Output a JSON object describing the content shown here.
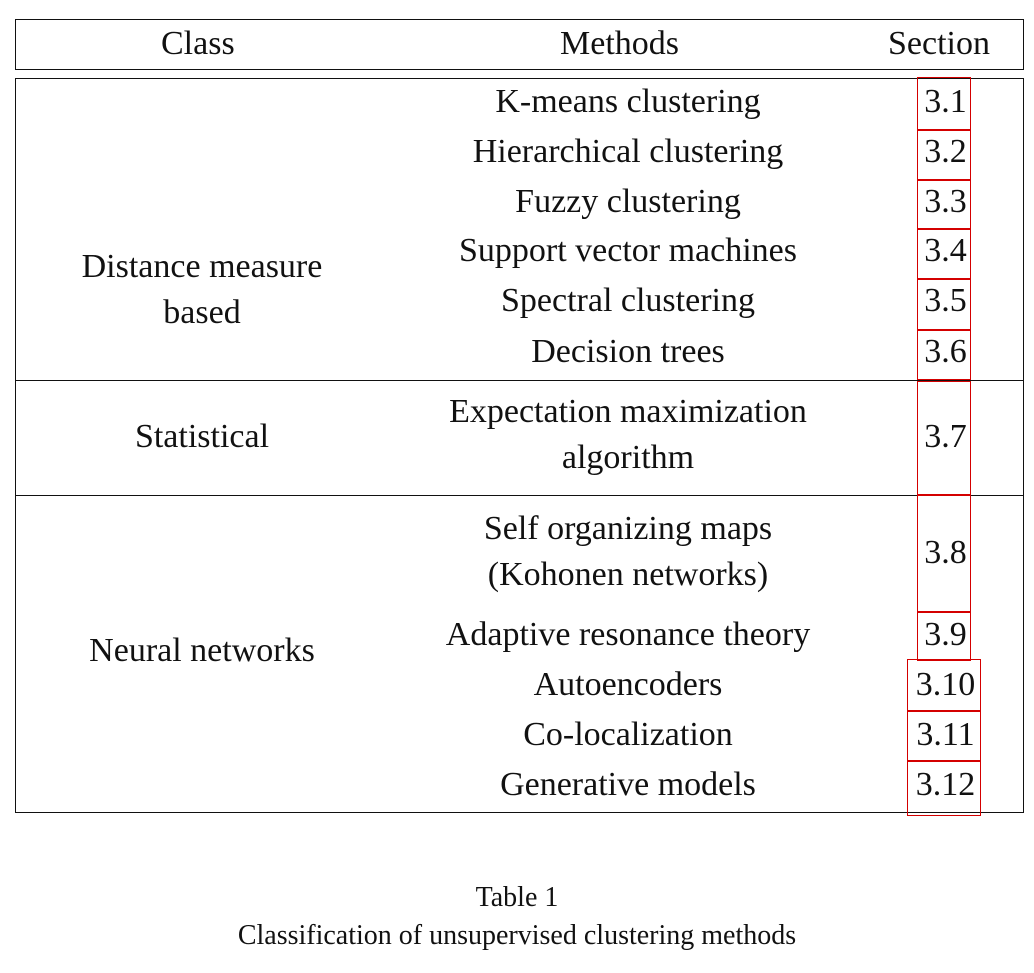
{
  "header": {
    "class": "Class",
    "methods": "Methods",
    "section": "Section"
  },
  "groups": [
    {
      "class_lines": [
        "Distance measure",
        "based"
      ],
      "rows": [
        {
          "method": [
            "K-means clustering"
          ],
          "section": "3.1"
        },
        {
          "method": [
            "Hierarchical clustering"
          ],
          "section": "3.2"
        },
        {
          "method": [
            "Fuzzy clustering"
          ],
          "section": "3.3"
        },
        {
          "method": [
            "Support vector machines"
          ],
          "section": "3.4"
        },
        {
          "method": [
            "Spectral clustering"
          ],
          "section": "3.5"
        },
        {
          "method": [
            "Decision trees"
          ],
          "section": "3.6"
        }
      ]
    },
    {
      "class_lines": [
        "Statistical"
      ],
      "rows": [
        {
          "method": [
            "Expectation maximization",
            "algorithm"
          ],
          "section": "3.7"
        }
      ]
    },
    {
      "class_lines": [
        "Neural networks"
      ],
      "rows": [
        {
          "method": [
            "Self organizing maps",
            "(Kohonen networks)"
          ],
          "section": "3.8"
        },
        {
          "method": [
            "Adaptive resonance theory"
          ],
          "section": "3.9"
        },
        {
          "method": [
            "Autoencoders"
          ],
          "section": "3.10"
        },
        {
          "method": [
            "Co-localization"
          ],
          "section": "3.11"
        },
        {
          "method": [
            "Generative models"
          ],
          "section": "3.12"
        }
      ]
    }
  ],
  "caption": {
    "label": "Table 1",
    "text": "Classification of unsupervised clustering methods"
  }
}
